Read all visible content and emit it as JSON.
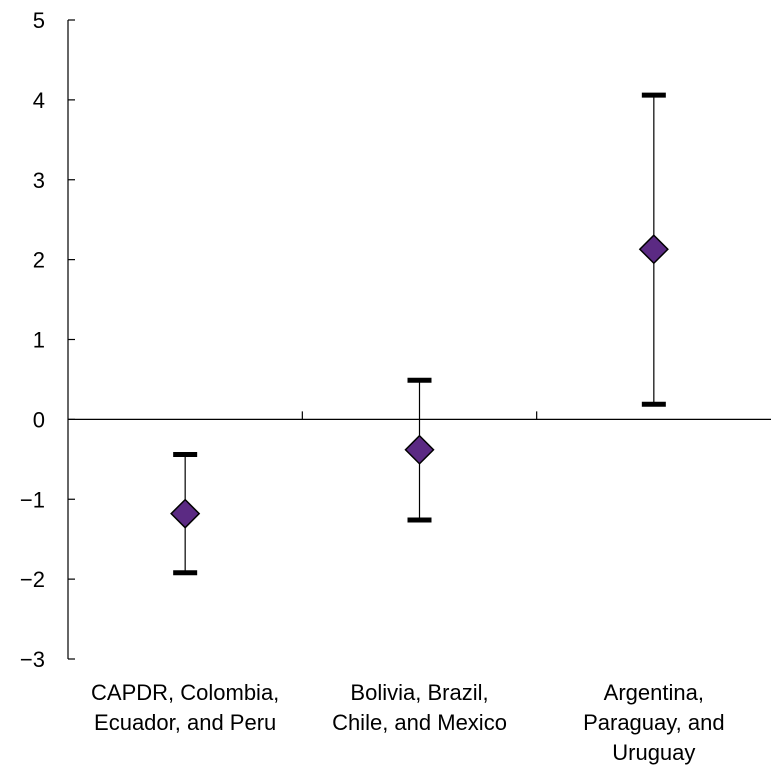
{
  "chart_data": {
    "type": "scatter",
    "title": "",
    "xlabel": "",
    "ylabel": "",
    "ylim": [
      -3,
      5
    ],
    "yticks": [
      -3,
      -2,
      -1,
      0,
      1,
      2,
      3,
      4,
      5
    ],
    "ytick_labels": [
      "−3",
      "−2",
      "−1",
      "0",
      "1",
      "2",
      "3",
      "4",
      "5"
    ],
    "categories": [
      [
        "CAPDR, Colombia,",
        "Ecuador, and Peru"
      ],
      [
        "Bolivia, Brazil,",
        "Chile, and Mexico"
      ],
      [
        "Argentina,",
        "Paraguay, and",
        "Uruguay"
      ]
    ],
    "series": [
      {
        "values": [
          -1.18,
          -0.38,
          2.13
        ],
        "lower": [
          -1.92,
          -1.26,
          0.19
        ],
        "upper": [
          -0.44,
          0.49,
          4.06
        ]
      }
    ],
    "colors": {
      "marker_fill": "#5B2A83",
      "marker_stroke": "#000000",
      "axis": "#000000"
    },
    "grid": false,
    "legend": "none"
  }
}
